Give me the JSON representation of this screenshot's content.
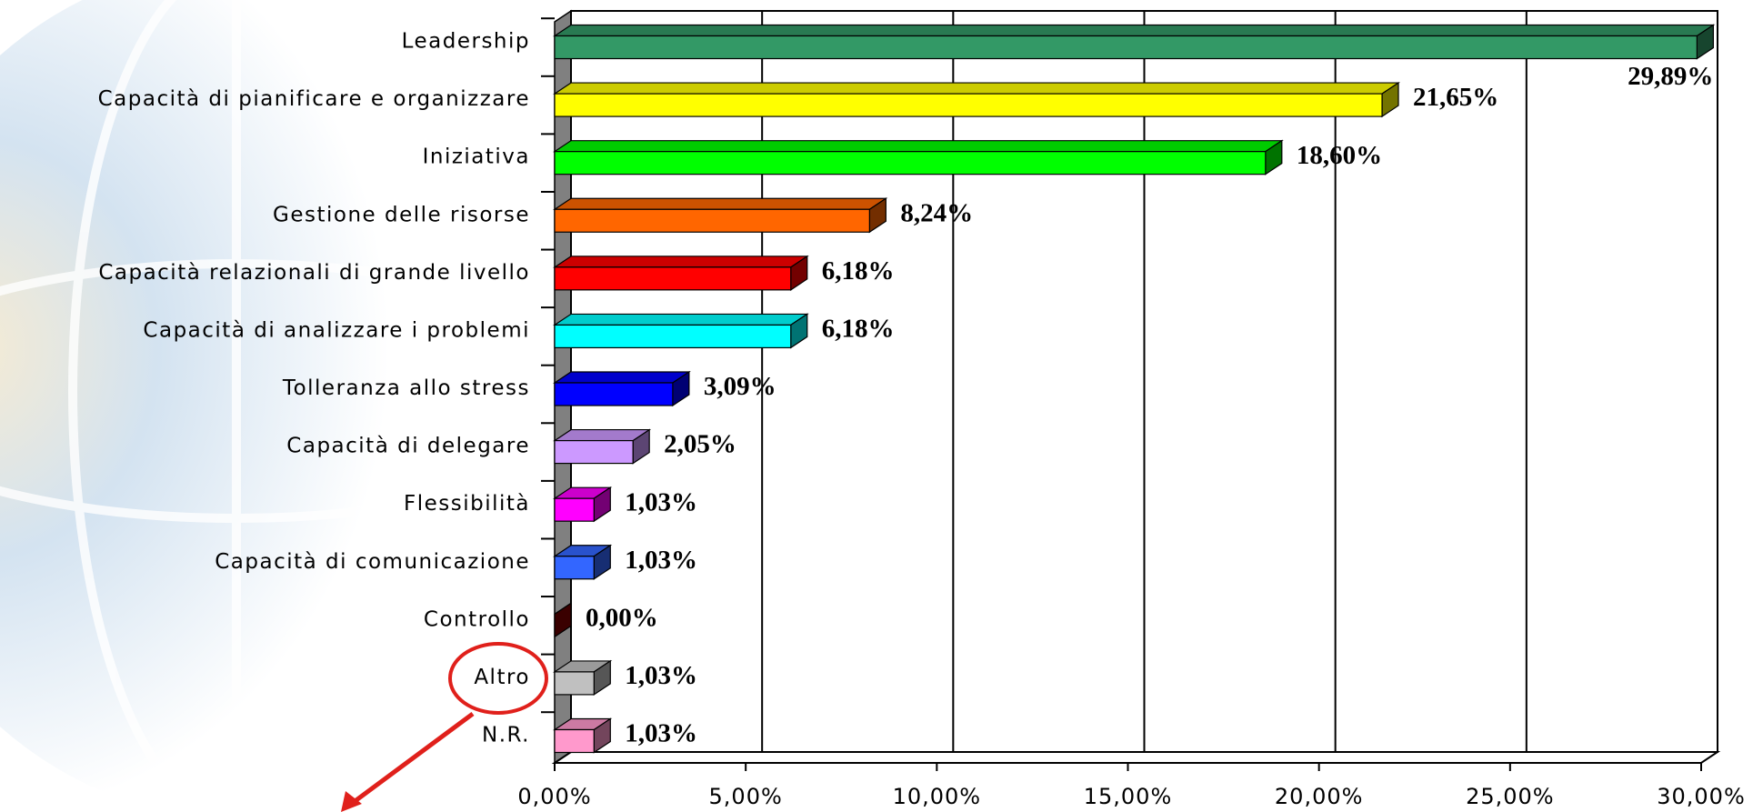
{
  "chart_data": {
    "type": "bar",
    "orientation": "horizontal",
    "categories": [
      "Leadership",
      "Capacità di pianificare e organizzare",
      "Iniziativa",
      "Gestione delle risorse",
      "Capacità relazionali di grande livello",
      "Capacità di analizzare i problemi",
      "Tolleranza allo stress",
      "Capacità di delegare",
      "Flessibilità",
      "Capacità di comunicazione",
      "Controllo",
      "Altro",
      "N.R."
    ],
    "values": [
      29.89,
      21.65,
      18.6,
      8.24,
      6.18,
      6.18,
      3.09,
      2.05,
      1.03,
      1.03,
      0.0,
      1.03,
      1.03
    ],
    "value_labels": [
      "29,89%",
      "21,65%",
      "18,60%",
      "8,24%",
      "6,18%",
      "6,18%",
      "3,09%",
      "2,05%",
      "1,03%",
      "1,03%",
      "0,00%",
      "1,03%",
      "1,03%"
    ],
    "colors": [
      "#339966",
      "#ffff00",
      "#00ff00",
      "#ff6600",
      "#ff0000",
      "#00ffff",
      "#0000ff",
      "#cc99ff",
      "#ff00ff",
      "#3366ff",
      "#800000",
      "#c0c0c0",
      "#ff99cc"
    ],
    "xlim": [
      0,
      30
    ],
    "xticks": [
      {
        "value": 0,
        "label": "0,00%"
      },
      {
        "value": 5,
        "label": "5,00%"
      },
      {
        "value": 10,
        "label": "10,00%"
      },
      {
        "value": 15,
        "label": "15,00%"
      },
      {
        "value": 20,
        "label": "20,00%"
      },
      {
        "value": 25,
        "label": "25,00%"
      },
      {
        "value": 30,
        "label": "30,00%"
      }
    ],
    "grid": true
  }
}
